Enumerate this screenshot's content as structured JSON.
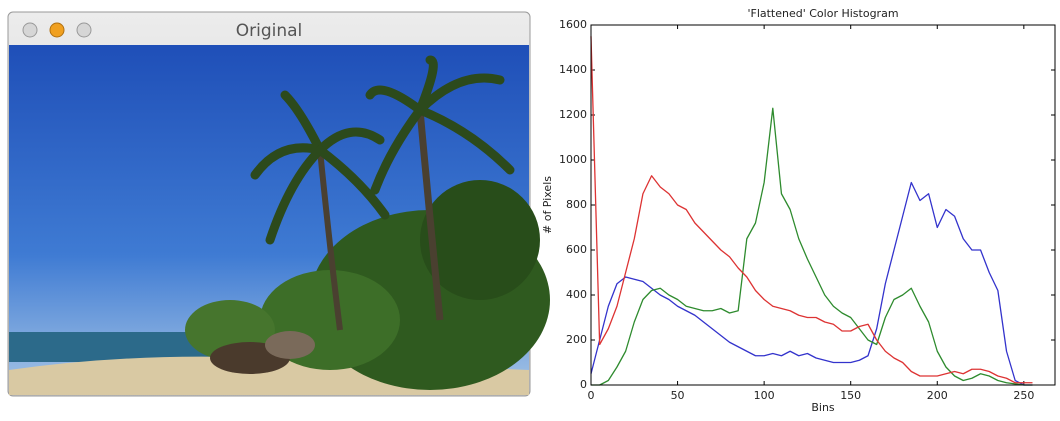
{
  "window": {
    "title": "Original"
  },
  "chart_data": {
    "type": "line",
    "title": "'Flattened' Color Histogram",
    "x_label": "Bins",
    "y_label": "# of Pixels",
    "x": [
      0,
      5,
      10,
      15,
      20,
      25,
      30,
      35,
      40,
      45,
      50,
      55,
      60,
      65,
      70,
      75,
      80,
      85,
      90,
      95,
      100,
      105,
      110,
      115,
      120,
      125,
      130,
      135,
      140,
      145,
      150,
      155,
      160,
      165,
      170,
      175,
      180,
      185,
      190,
      195,
      200,
      205,
      210,
      215,
      220,
      225,
      230,
      235,
      240,
      245,
      250,
      255
    ],
    "series": [
      {
        "color": "#3333cc",
        "values": [
          50,
          200,
          350,
          450,
          480,
          470,
          460,
          430,
          400,
          380,
          350,
          330,
          310,
          280,
          250,
          220,
          190,
          170,
          150,
          130,
          130,
          140,
          130,
          150,
          130,
          140,
          120,
          110,
          100,
          100,
          100,
          110,
          130,
          250,
          450,
          600,
          750,
          900,
          820,
          850,
          700,
          780,
          750,
          650,
          600,
          600,
          500,
          420,
          150,
          20,
          0,
          0
        ]
      },
      {
        "color": "#2e8b2e",
        "values": [
          0,
          0,
          20,
          80,
          150,
          280,
          380,
          420,
          430,
          400,
          380,
          350,
          340,
          330,
          330,
          340,
          320,
          330,
          650,
          720,
          900,
          1230,
          850,
          780,
          650,
          560,
          480,
          400,
          350,
          320,
          300,
          250,
          200,
          180,
          300,
          380,
          400,
          430,
          350,
          280,
          150,
          80,
          40,
          20,
          30,
          50,
          40,
          20,
          10,
          5,
          0,
          0
        ]
      },
      {
        "color": "#dd3333",
        "values": [
          1550,
          180,
          250,
          350,
          500,
          650,
          850,
          930,
          880,
          850,
          800,
          780,
          720,
          680,
          640,
          600,
          570,
          520,
          480,
          420,
          380,
          350,
          340,
          330,
          310,
          300,
          300,
          280,
          270,
          240,
          240,
          260,
          270,
          200,
          150,
          120,
          100,
          60,
          40,
          40,
          40,
          50,
          60,
          50,
          70,
          70,
          60,
          40,
          30,
          10,
          10,
          10
        ]
      }
    ],
    "xlim": [
      0,
      268
    ],
    "ylim": [
      0,
      1600
    ],
    "xticks": [
      0,
      50,
      100,
      150,
      200,
      250
    ],
    "yticks": [
      0,
      200,
      400,
      600,
      800,
      1000,
      1200,
      1400,
      1600
    ]
  }
}
